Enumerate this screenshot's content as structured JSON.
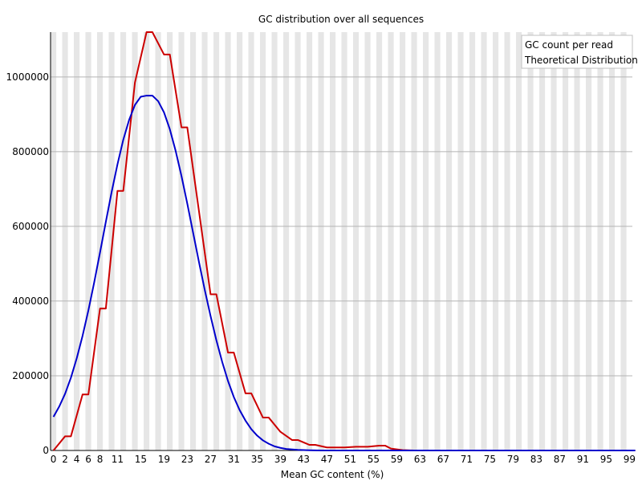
{
  "chart_data": {
    "type": "line",
    "title": "GC distribution over all sequences",
    "xlabel": "Mean GC content (%)",
    "ylabel": "",
    "xlim": [
      0,
      100
    ],
    "ylim": [
      0,
      1120000
    ],
    "grid": true,
    "legend_position": "top-right",
    "x_ticks": [
      0,
      2,
      4,
      6,
      8,
      11,
      15,
      19,
      23,
      27,
      31,
      35,
      39,
      43,
      47,
      51,
      55,
      59,
      63,
      67,
      71,
      75,
      79,
      83,
      87,
      91,
      95,
      99
    ],
    "y_ticks": [
      {
        "value": 0,
        "label": "0"
      },
      {
        "value": 200000,
        "label": "200000"
      },
      {
        "value": 400000,
        "label": "400000"
      },
      {
        "value": 600000,
        "label": "600000"
      },
      {
        "value": 800000,
        "label": "800000"
      },
      {
        "value": 1000000,
        "label": "1000000"
      }
    ],
    "series": [
      {
        "name": "GC count per read",
        "color": "#cc0000",
        "points": [
          [
            0,
            0
          ],
          [
            2,
            38000
          ],
          [
            3,
            38000
          ],
          [
            5,
            150000
          ],
          [
            6,
            150000
          ],
          [
            8,
            380000
          ],
          [
            9,
            380000
          ],
          [
            11,
            695000
          ],
          [
            12,
            695000
          ],
          [
            14,
            985000
          ],
          [
            16,
            1120000
          ],
          [
            17,
            1120000
          ],
          [
            19,
            1060000
          ],
          [
            20,
            1060000
          ],
          [
            22,
            865000
          ],
          [
            23,
            865000
          ],
          [
            27,
            418000
          ],
          [
            28,
            418000
          ],
          [
            30,
            262000
          ],
          [
            31,
            262000
          ],
          [
            33,
            153000
          ],
          [
            34,
            153000
          ],
          [
            36,
            88000
          ],
          [
            37,
            88000
          ],
          [
            39,
            50000
          ],
          [
            41,
            28000
          ],
          [
            42,
            28000
          ],
          [
            44,
            15000
          ],
          [
            45,
            15000
          ],
          [
            47,
            8000
          ],
          [
            50,
            8000
          ],
          [
            52,
            10000
          ],
          [
            54,
            10000
          ],
          [
            56,
            13000
          ],
          [
            57,
            13000
          ],
          [
            58,
            5000
          ],
          [
            59,
            3000
          ],
          [
            60,
            1000
          ],
          [
            62,
            0
          ],
          [
            100,
            0
          ]
        ]
      },
      {
        "name": "Theoretical Distribution",
        "color": "#0000cc",
        "points": [
          [
            0,
            90000
          ],
          [
            1,
            118000
          ],
          [
            2,
            152000
          ],
          [
            3,
            195000
          ],
          [
            4,
            247000
          ],
          [
            5,
            307000
          ],
          [
            6,
            375000
          ],
          [
            7,
            450000
          ],
          [
            8,
            530000
          ],
          [
            9,
            612000
          ],
          [
            10,
            692000
          ],
          [
            11,
            766000
          ],
          [
            12,
            832000
          ],
          [
            13,
            885000
          ],
          [
            14,
            925000
          ],
          [
            15,
            947000
          ],
          [
            16,
            950000
          ],
          [
            17,
            950000
          ],
          [
            18,
            935000
          ],
          [
            19,
            905000
          ],
          [
            20,
            860000
          ],
          [
            21,
            802000
          ],
          [
            22,
            735000
          ],
          [
            23,
            661000
          ],
          [
            24,
            583000
          ],
          [
            25,
            505000
          ],
          [
            26,
            430000
          ],
          [
            27,
            360000
          ],
          [
            28,
            295000
          ],
          [
            29,
            237000
          ],
          [
            30,
            186000
          ],
          [
            31,
            143000
          ],
          [
            32,
            108000
          ],
          [
            33,
            80000
          ],
          [
            34,
            57000
          ],
          [
            35,
            40000
          ],
          [
            36,
            27000
          ],
          [
            37,
            18000
          ],
          [
            38,
            11000
          ],
          [
            39,
            7000
          ],
          [
            40,
            4000
          ],
          [
            42,
            1500
          ],
          [
            44,
            500
          ],
          [
            46,
            0
          ],
          [
            100,
            0
          ]
        ]
      }
    ]
  }
}
